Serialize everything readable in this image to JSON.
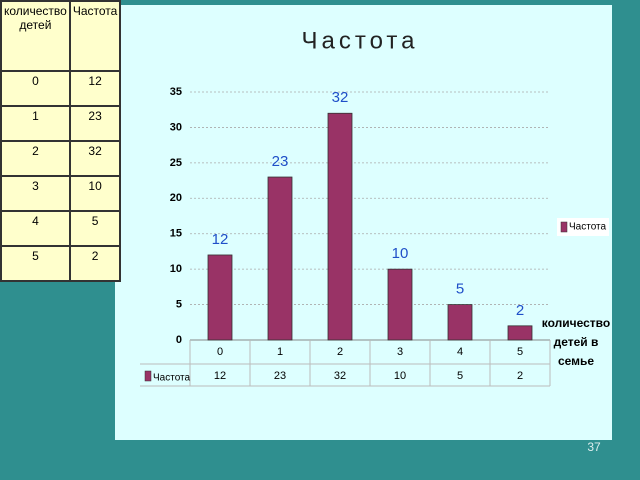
{
  "table": {
    "header": [
      "количество детей",
      "Частота"
    ],
    "rows": [
      [
        0,
        12
      ],
      [
        1,
        23
      ],
      [
        2,
        32
      ],
      [
        3,
        10
      ],
      [
        4,
        5
      ],
      [
        5,
        2
      ]
    ]
  },
  "chart_data": {
    "type": "bar",
    "title": "Частота",
    "x_label": "количество детей в семье",
    "categories": [
      "0",
      "1",
      "2",
      "3",
      "4",
      "5"
    ],
    "series": [
      {
        "name": "Частота",
        "color": "#993366",
        "values": [
          12,
          23,
          32,
          10,
          5,
          2
        ]
      }
    ],
    "ylim": [
      0,
      35
    ],
    "yticks": [
      0,
      5,
      10,
      15,
      20,
      25,
      30,
      35
    ],
    "grid": true,
    "legend": "right"
  },
  "page_number": "37"
}
